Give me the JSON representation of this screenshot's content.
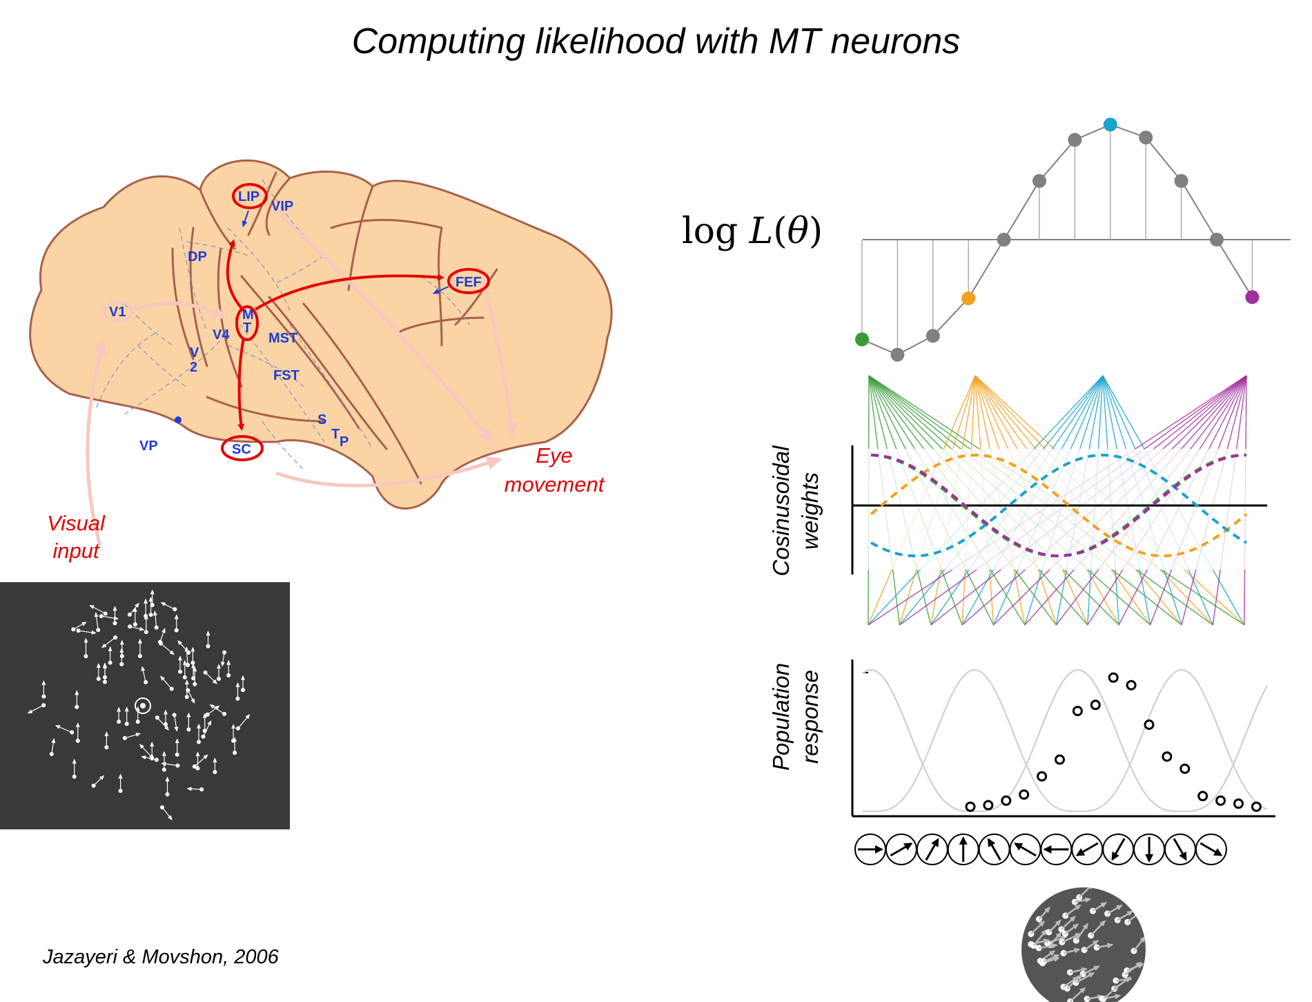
{
  "title": "Computing likelihood with MT neurons",
  "citation": "Jazayeri & Movshon, 2006",
  "brain": {
    "areas": {
      "lip": "LIP",
      "vip": "VIP",
      "dp": "DP",
      "v1": "V1",
      "v4": "V4",
      "v2_top": "V",
      "v2_bottom": "2",
      "mt_top": "M",
      "mt_bottom": "T",
      "mst": "MST",
      "fst": "FST",
      "fef": "FEF",
      "sc": "SC",
      "vp": "VP",
      "stp_s": "S",
      "stp_t": "T",
      "stp_p": "P"
    },
    "visual_input_line1": "Visual",
    "visual_input_line2": "input",
    "eye_movement_line1": "Eye",
    "eye_movement_line2": "movement"
  },
  "log_likelihood_label": "log L(θ)",
  "weights_label_line1": "Cosinusoidal",
  "weights_label_line2": "weights",
  "population_label_line1": "Population",
  "population_label_line2": "response",
  "colors": {
    "green": "#3a9a3a",
    "orange": "#f4a020",
    "cyan": "#1aa3cc",
    "magenta": "#a0309c",
    "gray_dot": "#808080",
    "brain_fill": "#fbd4a5",
    "brain_edge": "#a8604a",
    "pathway_red": "#e60000",
    "area_blue": "#1f3ad6"
  },
  "neuron_preferred_directions_deg": [
    0,
    30,
    60,
    90,
    120,
    150,
    180,
    210,
    240,
    270,
    300,
    330
  ],
  "log_likelihood_values": [
    -0.85,
    -0.98,
    -0.82,
    -0.5,
    0.0,
    0.5,
    0.85,
    0.98,
    0.87,
    0.5,
    0.0,
    -0.49
  ],
  "population_response": [
    0.04,
    0.05,
    0.08,
    0.12,
    0.24,
    0.35,
    0.67,
    0.71,
    0.89,
    0.84,
    0.58,
    0.37,
    0.29,
    0.11,
    0.08,
    0.06,
    0.04
  ]
}
